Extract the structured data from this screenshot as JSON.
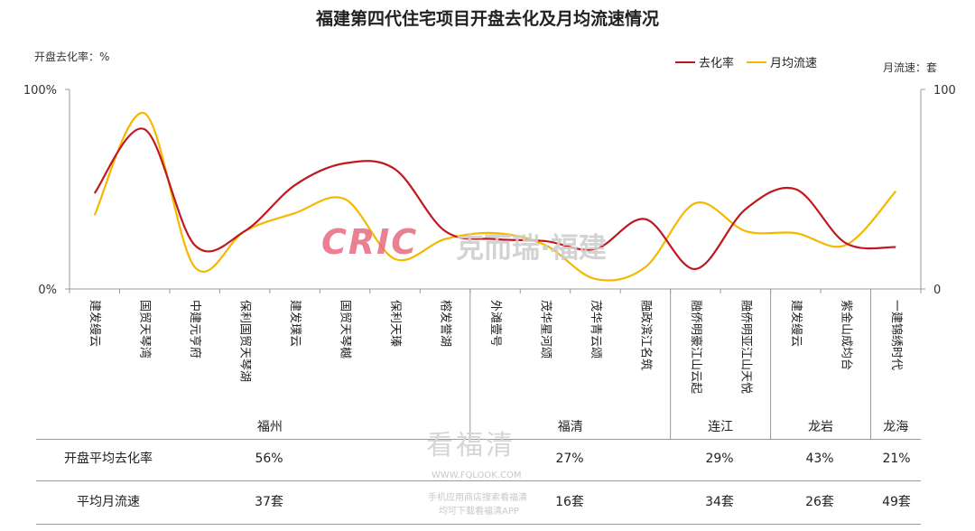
{
  "title": "福建第四代住宅项目开盘去化及月均流速情况",
  "left_unit": "开盘去化率：%",
  "right_unit": "月流速：套",
  "legend": [
    {
      "name": "去化率",
      "color": "#c0181e"
    },
    {
      "name": "月均流速",
      "color": "#f5b800"
    }
  ],
  "watermark": {
    "logo_latin": "CRIC",
    "logo_cn": "克而瑞·福建",
    "site_cn": "看福清",
    "site_url": "WWW.FQLOOK.COM",
    "site_line1": "手机应用商店搜索看福清",
    "site_line2": "均可下载看福清APP"
  },
  "chart_data": {
    "type": "line",
    "title": "福建第四代住宅项目开盘去化及月均流速情况",
    "categories": [
      "建发缦云",
      "国贸天琴湾",
      "中建元亨府",
      "保利国贸天琴湖",
      "建发璞云",
      "国贸天琴樾",
      "保利天瑧",
      "榕发誉湖",
      "外滩壹号",
      "茂华星河颂",
      "茂华青云颂",
      "融政滨江名筑",
      "融侨明豪江山云起",
      "融侨明亚江山天悦",
      "建发缦云",
      "紫金山成均台",
      "一建锦绣时代"
    ],
    "groups": [
      {
        "name": "福州",
        "count": 8
      },
      {
        "name": "福清",
        "count": 4
      },
      {
        "name": "连江",
        "count": 2
      },
      {
        "name": "龙岩",
        "count": 2
      },
      {
        "name": "龙海",
        "count": 1
      }
    ],
    "series": [
      {
        "name": "去化率",
        "axis": "left",
        "color": "#c0181e",
        "values": [
          48,
          80,
          22,
          29,
          52,
          63,
          60,
          29,
          25,
          24,
          20,
          35,
          10,
          40,
          50,
          23,
          21
        ]
      },
      {
        "name": "月均流速",
        "axis": "right",
        "color": "#f5b800",
        "values": [
          37,
          88,
          11,
          29,
          38,
          45,
          15,
          25,
          28,
          22,
          5,
          11,
          43,
          29,
          28,
          22,
          49
        ]
      }
    ],
    "left_axis": {
      "ylim": [
        0,
        100
      ],
      "ticks": [
        "0%",
        "100%"
      ]
    },
    "right_axis": {
      "ylim": [
        0,
        100
      ],
      "ticks": [
        "0",
        "100"
      ]
    },
    "grid": false,
    "legend_position": "top-right"
  },
  "summary": {
    "rows": [
      {
        "label": "开盘平均去化率",
        "values": [
          "56%",
          "27%",
          "29%",
          "43%",
          "21%"
        ]
      },
      {
        "label": "平均月流速",
        "values": [
          "37套",
          "16套",
          "34套",
          "26套",
          "49套"
        ]
      }
    ]
  }
}
